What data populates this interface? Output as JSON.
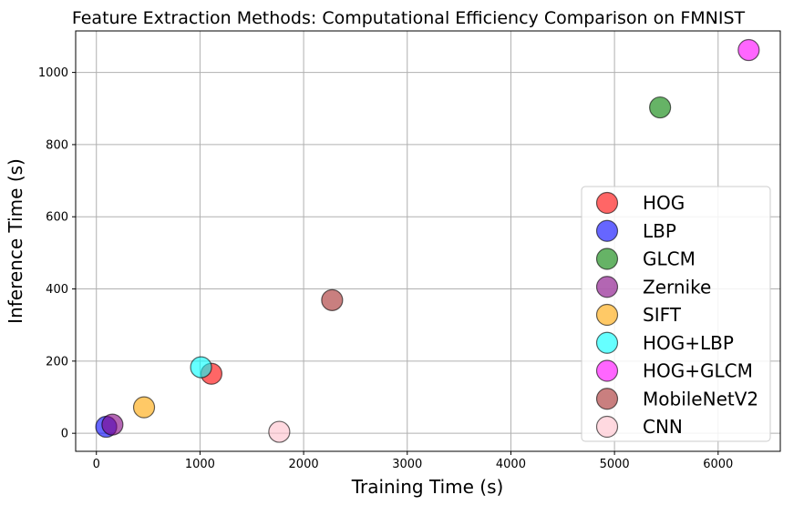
{
  "chart_data": {
    "type": "scatter",
    "title": "Feature Extraction Methods: Computational Efficiency Comparison on FMNIST",
    "xlabel": "Training Time (s)",
    "ylabel": "Inference Time (s)",
    "xlim": [
      -200,
      6600
    ],
    "ylim": [
      -50,
      1115
    ],
    "xticks": [
      0,
      1000,
      2000,
      3000,
      4000,
      5000,
      6000
    ],
    "yticks": [
      0,
      200,
      400,
      600,
      800,
      1000
    ],
    "grid": true,
    "legend_position": "lower-right",
    "series": [
      {
        "name": "HOG",
        "color": "#ff0000",
        "x": 1110,
        "y": 165
      },
      {
        "name": "LBP",
        "color": "#0000ff",
        "x": 95,
        "y": 18
      },
      {
        "name": "GLCM",
        "color": "#008000",
        "x": 5440,
        "y": 903
      },
      {
        "name": "Zernike",
        "color": "#800080",
        "x": 155,
        "y": 24
      },
      {
        "name": "SIFT",
        "color": "#ffa500",
        "x": 460,
        "y": 72
      },
      {
        "name": "HOG+LBP",
        "color": "#00ffff",
        "x": 1010,
        "y": 183
      },
      {
        "name": "HOG+GLCM",
        "color": "#ff00ff",
        "x": 6295,
        "y": 1062
      },
      {
        "name": "MobileNetV2",
        "color": "#a52a2a",
        "x": 2275,
        "y": 369
      },
      {
        "name": "CNN",
        "color": "#ffc0cb",
        "x": 1765,
        "y": 4
      }
    ]
  }
}
